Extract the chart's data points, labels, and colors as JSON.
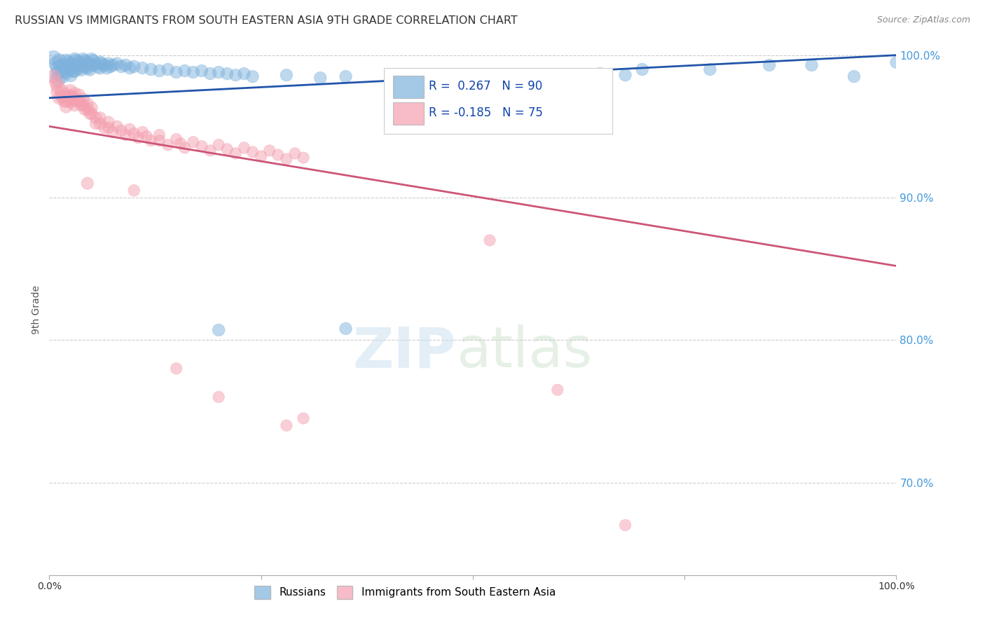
{
  "title": "RUSSIAN VS IMMIGRANTS FROM SOUTH EASTERN ASIA 9TH GRADE CORRELATION CHART",
  "source": "Source: ZipAtlas.com",
  "ylabel": "9th Grade",
  "xmin": 0.0,
  "xmax": 1.0,
  "ymin": 0.635,
  "ymax": 1.008,
  "yticks": [
    0.7,
    0.8,
    0.9,
    1.0
  ],
  "ytick_labels": [
    "70.0%",
    "80.0%",
    "90.0%",
    "100.0%"
  ],
  "legend_labels": [
    "Russians",
    "Immigrants from South Eastern Asia"
  ],
  "r_russian": 0.267,
  "n_russian": 90,
  "r_immigrant": -0.185,
  "n_immigrant": 75,
  "blue_color": "#7EB2DD",
  "pink_color": "#F4A0B0",
  "blue_line_color": "#2255AA",
  "pink_line_color": "#CC5577",
  "blue_line": [
    [
      0.0,
      0.97
    ],
    [
      1.0,
      1.0
    ]
  ],
  "pink_line": [
    [
      0.0,
      0.95
    ],
    [
      1.0,
      0.852
    ]
  ],
  "blue_scatter": [
    [
      0.005,
      0.998
    ],
    [
      0.008,
      0.994
    ],
    [
      0.01,
      0.991
    ],
    [
      0.01,
      0.987
    ],
    [
      0.01,
      0.983
    ],
    [
      0.012,
      0.996
    ],
    [
      0.014,
      0.992
    ],
    [
      0.015,
      0.989
    ],
    [
      0.015,
      0.985
    ],
    [
      0.018,
      0.993
    ],
    [
      0.02,
      0.996
    ],
    [
      0.02,
      0.992
    ],
    [
      0.02,
      0.988
    ],
    [
      0.022,
      0.995
    ],
    [
      0.023,
      0.991
    ],
    [
      0.025,
      0.994
    ],
    [
      0.025,
      0.99
    ],
    [
      0.025,
      0.986
    ],
    [
      0.027,
      0.993
    ],
    [
      0.028,
      0.989
    ],
    [
      0.03,
      0.997
    ],
    [
      0.03,
      0.993
    ],
    [
      0.03,
      0.989
    ],
    [
      0.032,
      0.996
    ],
    [
      0.033,
      0.992
    ],
    [
      0.035,
      0.995
    ],
    [
      0.035,
      0.991
    ],
    [
      0.037,
      0.994
    ],
    [
      0.038,
      0.99
    ],
    [
      0.04,
      0.997
    ],
    [
      0.04,
      0.993
    ],
    [
      0.042,
      0.996
    ],
    [
      0.043,
      0.992
    ],
    [
      0.045,
      0.995
    ],
    [
      0.045,
      0.991
    ],
    [
      0.047,
      0.994
    ],
    [
      0.048,
      0.99
    ],
    [
      0.05,
      0.997
    ],
    [
      0.05,
      0.993
    ],
    [
      0.052,
      0.996
    ],
    [
      0.055,
      0.994
    ],
    [
      0.057,
      0.992
    ],
    [
      0.06,
      0.995
    ],
    [
      0.06,
      0.991
    ],
    [
      0.062,
      0.994
    ],
    [
      0.065,
      0.993
    ],
    [
      0.068,
      0.991
    ],
    [
      0.07,
      0.994
    ],
    [
      0.072,
      0.992
    ],
    [
      0.075,
      0.993
    ],
    [
      0.08,
      0.994
    ],
    [
      0.085,
      0.992
    ],
    [
      0.09,
      0.993
    ],
    [
      0.095,
      0.991
    ],
    [
      0.1,
      0.992
    ],
    [
      0.11,
      0.991
    ],
    [
      0.12,
      0.99
    ],
    [
      0.13,
      0.989
    ],
    [
      0.14,
      0.99
    ],
    [
      0.15,
      0.988
    ],
    [
      0.16,
      0.989
    ],
    [
      0.17,
      0.988
    ],
    [
      0.18,
      0.989
    ],
    [
      0.19,
      0.987
    ],
    [
      0.2,
      0.988
    ],
    [
      0.21,
      0.987
    ],
    [
      0.22,
      0.986
    ],
    [
      0.23,
      0.987
    ],
    [
      0.24,
      0.985
    ],
    [
      0.28,
      0.986
    ],
    [
      0.32,
      0.984
    ],
    [
      0.35,
      0.985
    ],
    [
      0.2,
      0.807
    ],
    [
      0.35,
      0.808
    ],
    [
      0.5,
      0.972
    ],
    [
      0.58,
      0.985
    ],
    [
      0.65,
      0.987
    ],
    [
      0.68,
      0.986
    ],
    [
      0.7,
      0.99
    ],
    [
      0.78,
      0.99
    ],
    [
      0.85,
      0.993
    ],
    [
      0.9,
      0.993
    ],
    [
      0.95,
      0.985
    ],
    [
      1.0,
      0.995
    ]
  ],
  "pink_scatter": [
    [
      0.005,
      0.985
    ],
    [
      0.008,
      0.981
    ],
    [
      0.01,
      0.978
    ],
    [
      0.01,
      0.974
    ],
    [
      0.012,
      0.97
    ],
    [
      0.015,
      0.975
    ],
    [
      0.015,
      0.971
    ],
    [
      0.018,
      0.968
    ],
    [
      0.02,
      0.972
    ],
    [
      0.02,
      0.968
    ],
    [
      0.02,
      0.964
    ],
    [
      0.022,
      0.971
    ],
    [
      0.025,
      0.975
    ],
    [
      0.025,
      0.971
    ],
    [
      0.025,
      0.967
    ],
    [
      0.028,
      0.97
    ],
    [
      0.03,
      0.973
    ],
    [
      0.03,
      0.969
    ],
    [
      0.03,
      0.965
    ],
    [
      0.032,
      0.968
    ],
    [
      0.035,
      0.972
    ],
    [
      0.035,
      0.968
    ],
    [
      0.038,
      0.965
    ],
    [
      0.04,
      0.969
    ],
    [
      0.04,
      0.965
    ],
    [
      0.042,
      0.962
    ],
    [
      0.045,
      0.966
    ],
    [
      0.045,
      0.962
    ],
    [
      0.048,
      0.959
    ],
    [
      0.05,
      0.963
    ],
    [
      0.05,
      0.959
    ],
    [
      0.055,
      0.956
    ],
    [
      0.055,
      0.952
    ],
    [
      0.06,
      0.956
    ],
    [
      0.06,
      0.952
    ],
    [
      0.065,
      0.949
    ],
    [
      0.07,
      0.953
    ],
    [
      0.07,
      0.949
    ],
    [
      0.075,
      0.946
    ],
    [
      0.08,
      0.95
    ],
    [
      0.085,
      0.947
    ],
    [
      0.09,
      0.944
    ],
    [
      0.095,
      0.948
    ],
    [
      0.1,
      0.945
    ],
    [
      0.105,
      0.942
    ],
    [
      0.11,
      0.946
    ],
    [
      0.115,
      0.943
    ],
    [
      0.12,
      0.94
    ],
    [
      0.13,
      0.944
    ],
    [
      0.13,
      0.94
    ],
    [
      0.14,
      0.937
    ],
    [
      0.15,
      0.941
    ],
    [
      0.155,
      0.938
    ],
    [
      0.16,
      0.935
    ],
    [
      0.17,
      0.939
    ],
    [
      0.18,
      0.936
    ],
    [
      0.19,
      0.933
    ],
    [
      0.2,
      0.937
    ],
    [
      0.21,
      0.934
    ],
    [
      0.22,
      0.931
    ],
    [
      0.23,
      0.935
    ],
    [
      0.24,
      0.932
    ],
    [
      0.25,
      0.929
    ],
    [
      0.26,
      0.933
    ],
    [
      0.27,
      0.93
    ],
    [
      0.28,
      0.927
    ],
    [
      0.29,
      0.931
    ],
    [
      0.3,
      0.928
    ],
    [
      0.045,
      0.91
    ],
    [
      0.1,
      0.905
    ],
    [
      0.15,
      0.78
    ],
    [
      0.2,
      0.76
    ],
    [
      0.28,
      0.74
    ],
    [
      0.3,
      0.745
    ],
    [
      0.52,
      0.87
    ],
    [
      0.6,
      0.765
    ],
    [
      0.68,
      0.67
    ]
  ]
}
